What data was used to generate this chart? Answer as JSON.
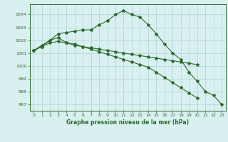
{
  "x": [
    0,
    1,
    2,
    3,
    4,
    5,
    6,
    7,
    8,
    9,
    10,
    11,
    12,
    13,
    14,
    15,
    16,
    17,
    18,
    19,
    20,
    21,
    22,
    23
  ],
  "line1": [
    1001.2,
    1001.5,
    1002.0,
    1002.5,
    1002.6,
    1002.7,
    1002.8,
    1002.8,
    1003.2,
    1003.5,
    1004.0,
    1004.3,
    1004.0,
    1003.8,
    1003.2,
    1002.5,
    1001.7,
    1001.0,
    1000.5,
    999.5,
    998.8,
    998.0,
    997.7,
    997.0
  ],
  "line2": [
    1001.2,
    1001.6,
    1002.0,
    1002.2,
    1001.8,
    1001.6,
    1001.5,
    1001.4,
    1001.3,
    1001.2,
    1001.1,
    1001.0,
    1000.9,
    1000.8,
    1000.7,
    1000.6,
    1000.5,
    1000.4,
    1000.3,
    1000.2,
    1000.1
  ],
  "line3": [
    1001.2,
    1001.5,
    1001.8,
    1001.9,
    1001.8,
    1001.7,
    1001.5,
    1001.3,
    1001.1,
    1000.9,
    1000.7,
    1000.5,
    1000.3,
    1000.1,
    999.9,
    999.5,
    999.1,
    998.7,
    998.3,
    997.9,
    997.5
  ],
  "line_color": "#2d6a2d",
  "bg_color": "#d8f0f0",
  "grid_color": "#b8d8d8",
  "ylabel_vals": [
    997,
    998,
    999,
    1000,
    1001,
    1002,
    1003,
    1004
  ],
  "xlabel_vals": [
    0,
    1,
    2,
    3,
    4,
    5,
    6,
    7,
    8,
    9,
    10,
    11,
    12,
    13,
    14,
    15,
    16,
    17,
    18,
    19,
    20,
    21,
    22,
    23
  ],
  "xlabel": "Graphe pression niveau de la mer (hPa)",
  "ylim": [
    996.5,
    1004.8
  ],
  "xlim": [
    -0.5,
    23.5
  ]
}
